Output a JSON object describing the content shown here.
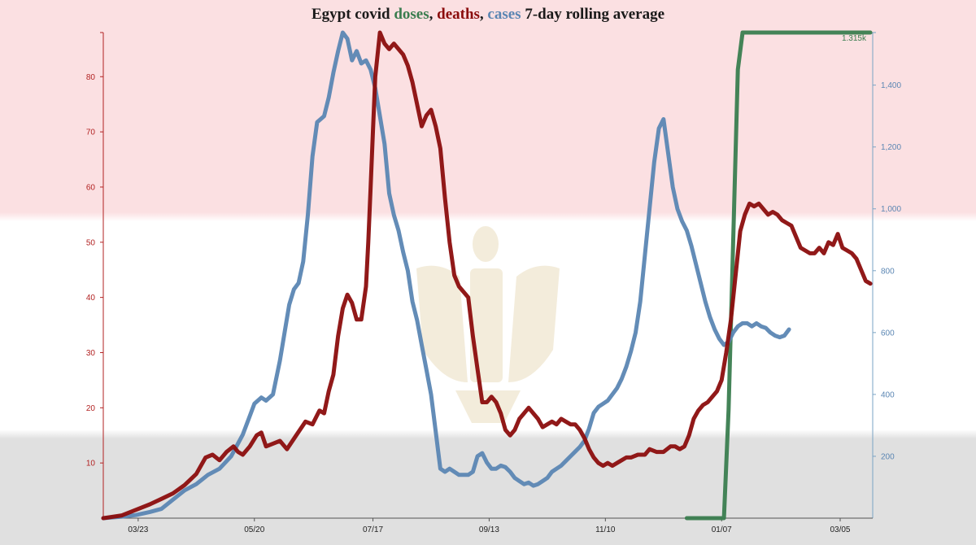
{
  "title": {
    "prefix": "Egypt covid ",
    "doses_word": "doses",
    "sep1": ", ",
    "deaths_word": "deaths",
    "sep2": ", ",
    "cases_word": "cases",
    "suffix": " 7-day rolling average"
  },
  "colors": {
    "doses": "#3a7d4f",
    "deaths": "#8b0d0d",
    "cases": "#5b86b3",
    "flag_red": "#fbe0e2",
    "flag_black": "#e0e0e0",
    "left_axis": "#b22222",
    "right_axis": "#5b86b3"
  },
  "chart_data": {
    "type": "line",
    "title": "Egypt covid doses, deaths, cases 7-day rolling average",
    "x_tick_labels": [
      "03/23",
      "05/20",
      "07/17",
      "09/13",
      "11/10",
      "01/07",
      "03/05"
    ],
    "y_left": {
      "label": "deaths",
      "range": [
        0,
        88
      ],
      "ticks": [
        10,
        20,
        30,
        40,
        50,
        60,
        70,
        80
      ]
    },
    "y_right": {
      "label": "cases",
      "range": [
        0,
        1570
      ],
      "ticks": [
        200,
        400,
        600,
        800,
        1000,
        1200,
        1400
      ]
    },
    "doses_annotation": "1.315k",
    "series": [
      {
        "name": "deaths",
        "axis": "left",
        "points": [
          [
            0,
            0
          ],
          [
            8,
            0.5
          ],
          [
            14,
            1.5
          ],
          [
            20,
            2.5
          ],
          [
            25,
            3.5
          ],
          [
            30,
            4.5
          ],
          [
            35,
            6
          ],
          [
            40,
            8
          ],
          [
            44,
            11
          ],
          [
            47,
            11.5
          ],
          [
            50,
            10.5
          ],
          [
            53,
            12
          ],
          [
            56,
            13
          ],
          [
            58,
            12
          ],
          [
            60,
            11.5
          ],
          [
            63,
            13
          ],
          [
            66,
            15
          ],
          [
            68,
            15.5
          ],
          [
            70,
            13
          ],
          [
            73,
            13.5
          ],
          [
            76,
            14
          ],
          [
            79,
            12.5
          ],
          [
            83,
            15
          ],
          [
            87,
            17.5
          ],
          [
            90,
            17
          ],
          [
            93,
            19.5
          ],
          [
            95,
            19
          ],
          [
            97,
            23
          ],
          [
            99,
            26
          ],
          [
            101,
            33
          ],
          [
            103,
            38
          ],
          [
            105,
            40.5
          ],
          [
            107,
            39
          ],
          [
            109,
            36
          ],
          [
            111,
            36
          ],
          [
            113,
            42
          ],
          [
            114,
            50
          ],
          [
            115,
            60
          ],
          [
            116,
            70
          ],
          [
            117,
            80
          ],
          [
            119,
            88
          ],
          [
            121,
            86
          ],
          [
            123,
            85
          ],
          [
            125,
            86
          ],
          [
            127,
            85
          ],
          [
            129,
            84
          ],
          [
            131,
            82
          ],
          [
            133,
            79
          ],
          [
            135,
            75
          ],
          [
            137,
            71
          ],
          [
            139,
            73
          ],
          [
            141,
            74
          ],
          [
            143,
            71
          ],
          [
            145,
            67
          ],
          [
            147,
            58
          ],
          [
            149,
            50
          ],
          [
            151,
            44
          ],
          [
            153,
            42
          ],
          [
            155,
            41
          ],
          [
            157,
            40
          ],
          [
            159,
            33
          ],
          [
            161,
            27
          ],
          [
            163,
            21
          ],
          [
            165,
            21
          ],
          [
            167,
            22
          ],
          [
            169,
            21
          ],
          [
            171,
            19
          ],
          [
            173,
            16
          ],
          [
            175,
            15
          ],
          [
            177,
            16
          ],
          [
            179,
            18
          ],
          [
            181,
            19
          ],
          [
            183,
            20
          ],
          [
            185,
            19
          ],
          [
            187,
            18
          ],
          [
            189,
            16.5
          ],
          [
            191,
            17
          ],
          [
            193,
            17.5
          ],
          [
            195,
            17
          ],
          [
            197,
            18
          ],
          [
            199,
            17.5
          ],
          [
            201,
            17
          ],
          [
            203,
            17
          ],
          [
            205,
            16
          ],
          [
            207,
            14.5
          ],
          [
            209,
            12.5
          ],
          [
            211,
            11
          ],
          [
            213,
            10
          ],
          [
            215,
            9.5
          ],
          [
            217,
            10
          ],
          [
            219,
            9.5
          ],
          [
            221,
            10
          ],
          [
            223,
            10.5
          ],
          [
            225,
            11
          ],
          [
            227,
            11
          ],
          [
            230,
            11.5
          ],
          [
            233,
            11.5
          ],
          [
            235,
            12.5
          ],
          [
            238,
            12
          ],
          [
            241,
            12
          ],
          [
            244,
            13
          ],
          [
            246,
            13
          ],
          [
            248,
            12.5
          ],
          [
            250,
            13
          ],
          [
            252,
            15
          ],
          [
            254,
            18
          ],
          [
            256,
            19.5
          ],
          [
            258,
            20.5
          ],
          [
            260,
            21
          ],
          [
            262,
            22
          ],
          [
            264,
            23
          ],
          [
            266,
            25
          ],
          [
            268,
            30
          ],
          [
            270,
            36
          ],
          [
            272,
            44
          ],
          [
            274,
            52
          ],
          [
            276,
            55
          ],
          [
            278,
            57
          ],
          [
            280,
            56.5
          ],
          [
            282,
            57
          ],
          [
            284,
            56
          ],
          [
            286,
            55
          ],
          [
            288,
            55.5
          ],
          [
            290,
            55
          ],
          [
            292,
            54
          ],
          [
            294,
            53.5
          ],
          [
            296,
            53
          ],
          [
            298,
            51
          ],
          [
            300,
            49
          ],
          [
            302,
            48.5
          ],
          [
            304,
            48
          ],
          [
            306,
            48
          ],
          [
            308,
            49
          ],
          [
            310,
            48
          ],
          [
            312,
            50
          ],
          [
            314,
            49.5
          ],
          [
            316,
            51.5
          ],
          [
            318,
            49
          ],
          [
            320,
            48.5
          ],
          [
            322,
            48
          ],
          [
            324,
            47
          ],
          [
            326,
            45
          ],
          [
            328,
            43
          ],
          [
            330,
            42.5
          ]
        ]
      },
      {
        "name": "cases",
        "axis": "right",
        "points": [
          [
            0,
            0
          ],
          [
            8,
            5
          ],
          [
            14,
            10
          ],
          [
            20,
            20
          ],
          [
            25,
            30
          ],
          [
            30,
            60
          ],
          [
            35,
            90
          ],
          [
            40,
            110
          ],
          [
            45,
            140
          ],
          [
            50,
            160
          ],
          [
            55,
            200
          ],
          [
            60,
            270
          ],
          [
            63,
            330
          ],
          [
            65,
            370
          ],
          [
            68,
            390
          ],
          [
            70,
            380
          ],
          [
            73,
            400
          ],
          [
            76,
            510
          ],
          [
            78,
            600
          ],
          [
            80,
            690
          ],
          [
            82,
            740
          ],
          [
            84,
            760
          ],
          [
            86,
            830
          ],
          [
            88,
            980
          ],
          [
            90,
            1170
          ],
          [
            92,
            1280
          ],
          [
            95,
            1300
          ],
          [
            97,
            1360
          ],
          [
            99,
            1440
          ],
          [
            101,
            1510
          ],
          [
            103,
            1570
          ],
          [
            105,
            1550
          ],
          [
            107,
            1480
          ],
          [
            109,
            1510
          ],
          [
            111,
            1470
          ],
          [
            113,
            1480
          ],
          [
            115,
            1450
          ],
          [
            117,
            1390
          ],
          [
            119,
            1300
          ],
          [
            121,
            1210
          ],
          [
            123,
            1050
          ],
          [
            125,
            980
          ],
          [
            127,
            930
          ],
          [
            129,
            860
          ],
          [
            131,
            800
          ],
          [
            133,
            700
          ],
          [
            135,
            640
          ],
          [
            137,
            560
          ],
          [
            139,
            480
          ],
          [
            141,
            400
          ],
          [
            143,
            280
          ],
          [
            145,
            160
          ],
          [
            147,
            150
          ],
          [
            149,
            160
          ],
          [
            151,
            150
          ],
          [
            153,
            140
          ],
          [
            155,
            140
          ],
          [
            157,
            140
          ],
          [
            159,
            150
          ],
          [
            161,
            200
          ],
          [
            163,
            210
          ],
          [
            165,
            180
          ],
          [
            167,
            160
          ],
          [
            169,
            160
          ],
          [
            171,
            170
          ],
          [
            173,
            165
          ],
          [
            175,
            150
          ],
          [
            177,
            130
          ],
          [
            179,
            120
          ],
          [
            181,
            110
          ],
          [
            183,
            115
          ],
          [
            185,
            105
          ],
          [
            187,
            110
          ],
          [
            189,
            120
          ],
          [
            191,
            130
          ],
          [
            193,
            150
          ],
          [
            195,
            160
          ],
          [
            197,
            170
          ],
          [
            199,
            185
          ],
          [
            201,
            200
          ],
          [
            203,
            215
          ],
          [
            205,
            230
          ],
          [
            207,
            250
          ],
          [
            209,
            290
          ],
          [
            211,
            340
          ],
          [
            213,
            360
          ],
          [
            215,
            370
          ],
          [
            217,
            380
          ],
          [
            219,
            400
          ],
          [
            221,
            420
          ],
          [
            223,
            450
          ],
          [
            225,
            490
          ],
          [
            227,
            540
          ],
          [
            229,
            600
          ],
          [
            231,
            700
          ],
          [
            233,
            850
          ],
          [
            235,
            1000
          ],
          [
            237,
            1150
          ],
          [
            239,
            1260
          ],
          [
            241,
            1290
          ],
          [
            243,
            1180
          ],
          [
            245,
            1070
          ],
          [
            247,
            1000
          ],
          [
            249,
            960
          ],
          [
            251,
            930
          ],
          [
            253,
            880
          ],
          [
            255,
            820
          ],
          [
            257,
            760
          ],
          [
            259,
            700
          ],
          [
            261,
            650
          ],
          [
            263,
            610
          ],
          [
            265,
            580
          ],
          [
            267,
            560
          ],
          [
            269,
            570
          ],
          [
            271,
            600
          ],
          [
            273,
            620
          ],
          [
            275,
            630
          ],
          [
            277,
            630
          ],
          [
            279,
            620
          ],
          [
            281,
            630
          ],
          [
            283,
            620
          ],
          [
            285,
            615
          ],
          [
            287,
            600
          ],
          [
            289,
            590
          ],
          [
            291,
            585
          ],
          [
            293,
            590
          ],
          [
            295,
            610
          ]
        ]
      },
      {
        "name": "doses",
        "axis": "right_scaled",
        "points": [
          [
            251,
            0
          ],
          [
            267,
            0
          ],
          [
            269,
            350
          ],
          [
            271,
            900
          ],
          [
            273,
            1450
          ],
          [
            275,
            1570
          ],
          [
            330,
            1570
          ]
        ]
      }
    ],
    "x_tick_positions": [
      15,
      65,
      116,
      166,
      216,
      266,
      317
    ],
    "x_range": [
      0,
      331
    ]
  }
}
